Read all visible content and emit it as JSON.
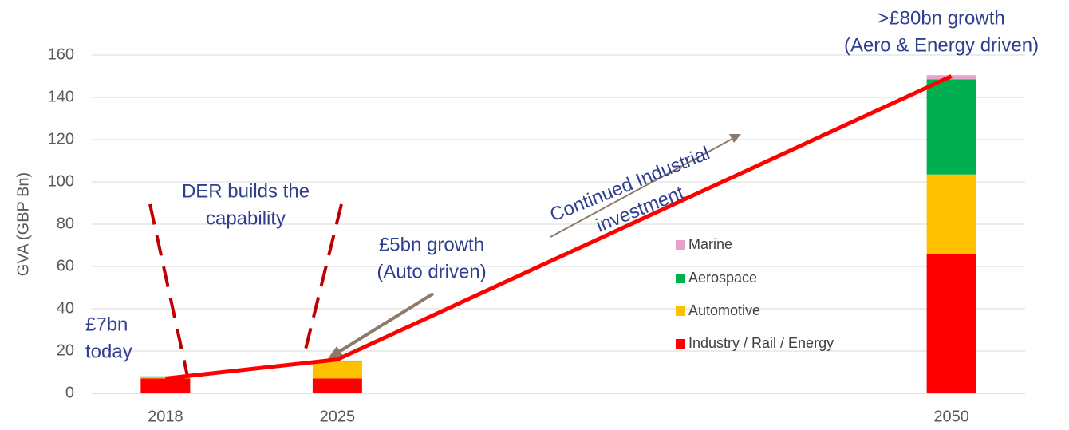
{
  "chart_data": {
    "type": "bar",
    "stacked": true,
    "y_label": "GVA (GBP Bn)",
    "x": [
      2018,
      2025,
      2050
    ],
    "xlim": [
      2015,
      2053
    ],
    "xticks": [
      2018,
      2025,
      2050
    ],
    "ylim": [
      0,
      160
    ],
    "yticks": [
      0,
      20,
      40,
      60,
      80,
      100,
      120,
      140,
      160
    ],
    "grid": true,
    "legend": "center",
    "series": [
      {
        "name": "Industry / Rail / Energy",
        "color": "#ff0000",
        "values": [
          7,
          7,
          66
        ]
      },
      {
        "name": "Automotive",
        "color": "#ffc000",
        "values": [
          0.5,
          8,
          37.5
        ]
      },
      {
        "name": "Aerospace",
        "color": "#00b050",
        "values": [
          0.5,
          0.5,
          45
        ]
      },
      {
        "name": "Marine",
        "color": "#e6a3c9",
        "values": [
          0,
          0,
          2
        ]
      }
    ],
    "line": {
      "color": "#ff0000",
      "values": [
        7,
        16,
        150
      ]
    },
    "annotations": [
      [
        "£7bn",
        "today"
      ],
      [
        "DER builds the",
        "capability"
      ],
      [
        "£5bn growth",
        "(Auto driven)"
      ],
      [
        "Continued Industrial",
        "investment"
      ],
      [
        ">£80bn growth",
        "(Aero & Energy driven)"
      ]
    ]
  }
}
